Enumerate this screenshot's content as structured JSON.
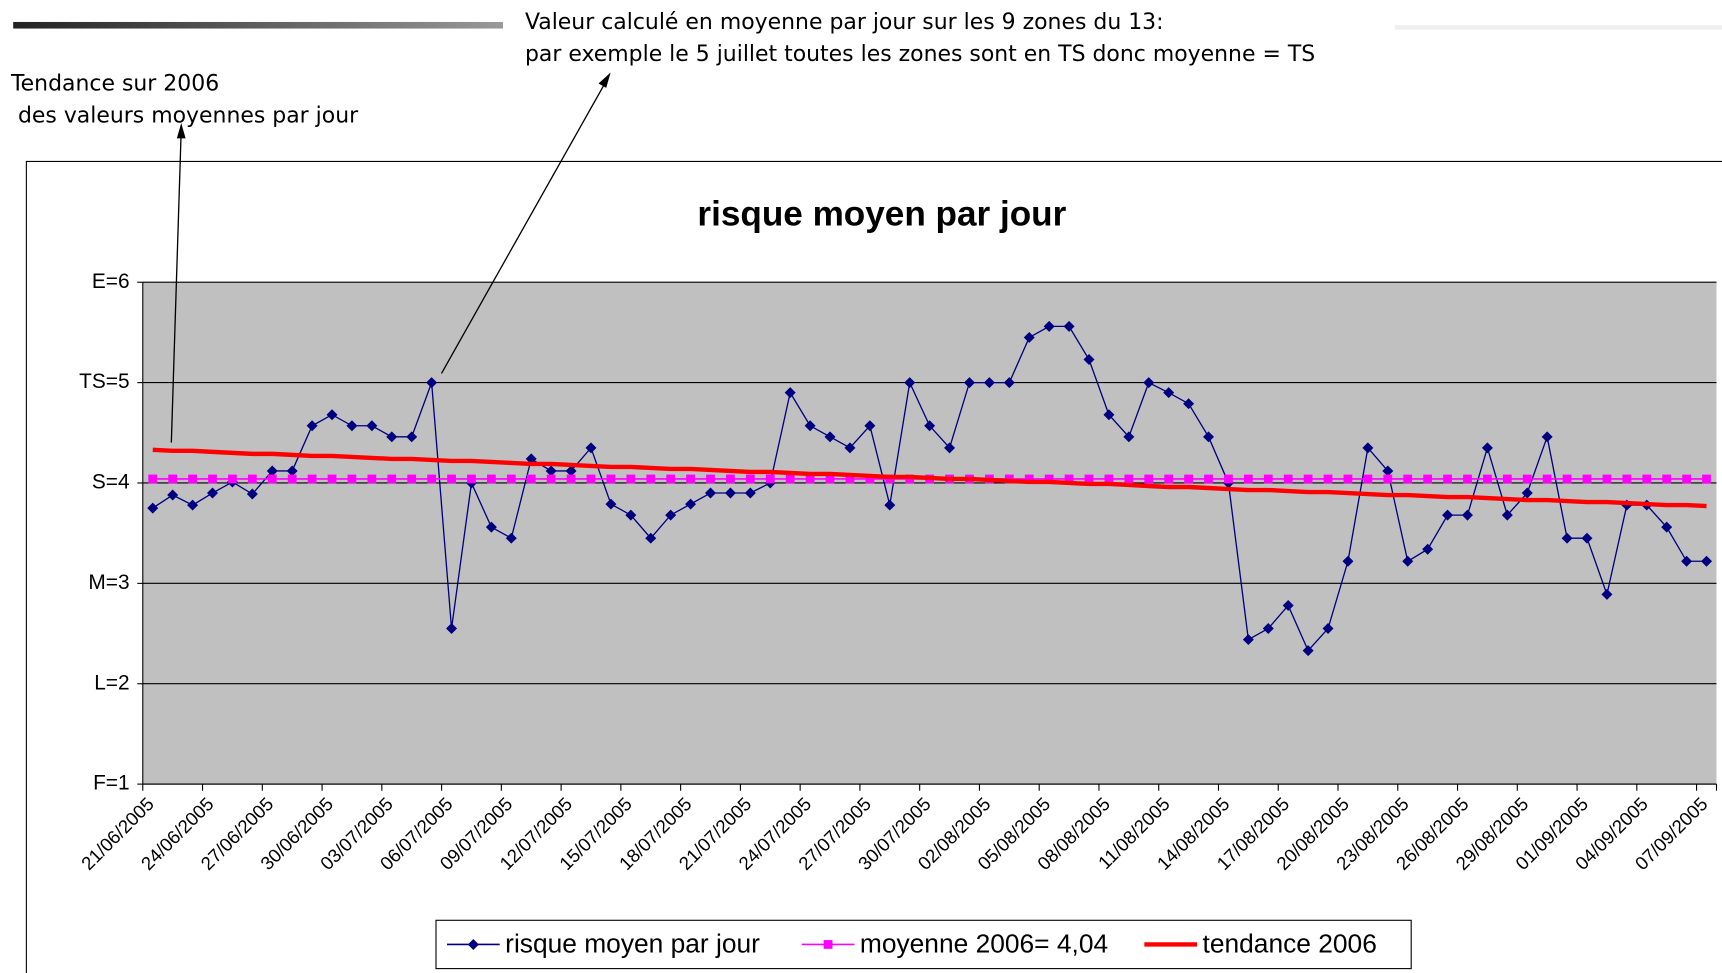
{
  "chart_data": {
    "type": "line",
    "title": "risque moyen par jour",
    "annotations": [
      [
        "Valeur calculé en moyenne par jour sur les 9 zones du 13:",
        "par exemple le 5 juillet toutes les zones sont en TS donc moyenne = TS"
      ],
      [
        "Tendance sur 2006",
        " des valeurs moyennes par jour"
      ]
    ],
    "categories": [
      "21/06/2005",
      null,
      null,
      "24/06/2005",
      null,
      null,
      "27/06/2005",
      null,
      null,
      "30/06/2005",
      null,
      null,
      "03/07/2005",
      null,
      null,
      "06/07/2005",
      null,
      null,
      "09/07/2005",
      null,
      null,
      "12/07/2005",
      null,
      null,
      "15/07/2005",
      null,
      null,
      "18/07/2005",
      null,
      null,
      "21/07/2005",
      null,
      null,
      "24/07/2005",
      null,
      null,
      "27/07/2005",
      null,
      null,
      "30/07/2005",
      null,
      null,
      "02/08/2005",
      null,
      null,
      "05/08/2005",
      null,
      null,
      "08/08/2005",
      null,
      null,
      "11/08/2005",
      null,
      null,
      "14/08/2005",
      null,
      null,
      "17/08/2005",
      null,
      null,
      "20/08/2005",
      null,
      null,
      "23/08/2005",
      null,
      null,
      "26/08/2005",
      null,
      null,
      "29/08/2005",
      null,
      null,
      "01/09/2005",
      null,
      null,
      "04/09/2005",
      null,
      null,
      "07/09/2005"
    ],
    "series": [
      {
        "name": "risque moyen par jour",
        "color": "#000080",
        "marker": "diamond",
        "values": [
          3.75,
          3.88,
          3.78,
          3.9,
          4.01,
          3.89,
          4.12,
          4.12,
          4.57,
          4.68,
          4.57,
          4.57,
          4.46,
          4.46,
          5.0,
          2.55,
          4.0,
          3.56,
          3.45,
          4.24,
          4.12,
          4.12,
          4.35,
          3.79,
          3.68,
          3.45,
          3.68,
          3.79,
          3.9,
          3.9,
          3.9,
          4.0,
          4.9,
          4.57,
          4.46,
          4.35,
          4.57,
          3.78,
          5.0,
          4.57,
          4.35,
          5.0,
          5.0,
          5.0,
          5.45,
          5.56,
          5.56,
          5.23,
          4.68,
          4.46,
          5.0,
          4.9,
          4.79,
          4.46,
          4.0,
          2.44,
          2.55,
          2.78,
          2.33,
          2.55,
          3.22,
          4.35,
          4.12,
          3.22,
          3.34,
          3.68,
          3.68,
          4.35,
          3.68,
          3.9,
          4.46,
          3.45,
          3.45,
          2.89,
          3.78,
          3.78,
          3.56,
          3.22,
          3.22
        ]
      },
      {
        "name": "moyenne 2006= 4,04",
        "color": "#ff00ff",
        "marker": "square",
        "values": [
          4.04,
          4.04,
          4.04,
          4.04,
          4.04,
          4.04,
          4.04,
          4.04,
          4.04,
          4.04,
          4.04,
          4.04,
          4.04,
          4.04,
          4.04,
          4.04,
          4.04,
          4.04,
          4.04,
          4.04,
          4.04,
          4.04,
          4.04,
          4.04,
          4.04,
          4.04,
          4.04,
          4.04,
          4.04,
          4.04,
          4.04,
          4.04,
          4.04,
          4.04,
          4.04,
          4.04,
          4.04,
          4.04,
          4.04,
          4.04,
          4.04,
          4.04,
          4.04,
          4.04,
          4.04,
          4.04,
          4.04,
          4.04,
          4.04,
          4.04,
          4.04,
          4.04,
          4.04,
          4.04,
          4.04,
          4.04,
          4.04,
          4.04,
          4.04,
          4.04,
          4.04,
          4.04,
          4.04,
          4.04,
          4.04,
          4.04,
          4.04,
          4.04,
          4.04,
          4.04,
          4.04,
          4.04,
          4.04,
          4.04,
          4.04,
          4.04,
          4.04,
          4.04,
          4.04
        ]
      },
      {
        "name": "tendance 2006",
        "color": "#ff0000",
        "marker": "none",
        "values": [
          4.33,
          4.32,
          4.32,
          4.31,
          4.3,
          4.29,
          4.29,
          4.28,
          4.27,
          4.27,
          4.26,
          4.25,
          4.24,
          4.24,
          4.23,
          4.22,
          4.22,
          4.21,
          4.2,
          4.19,
          4.19,
          4.18,
          4.17,
          4.16,
          4.16,
          4.15,
          4.14,
          4.14,
          4.13,
          4.12,
          4.11,
          4.11,
          4.1,
          4.09,
          4.09,
          4.08,
          4.07,
          4.06,
          4.06,
          4.05,
          4.04,
          4.04,
          4.03,
          4.02,
          4.01,
          4.01,
          4.0,
          3.99,
          3.99,
          3.98,
          3.97,
          3.96,
          3.96,
          3.95,
          3.94,
          3.93,
          3.93,
          3.92,
          3.91,
          3.91,
          3.9,
          3.89,
          3.88,
          3.88,
          3.87,
          3.86,
          3.86,
          3.85,
          3.84,
          3.83,
          3.83,
          3.82,
          3.81,
          3.81,
          3.8,
          3.79,
          3.78,
          3.78,
          3.77
        ]
      }
    ],
    "ylim": [
      1,
      6
    ],
    "yticks": [
      {
        "value": 1,
        "label": "F=1"
      },
      {
        "value": 2,
        "label": "L=2"
      },
      {
        "value": 3,
        "label": "M=3"
      },
      {
        "value": 4,
        "label": "S=4"
      },
      {
        "value": 5,
        "label": "TS=5"
      },
      {
        "value": 6,
        "label": "E=6"
      }
    ],
    "grid": true,
    "plot_background": "#c0c0c0",
    "legend": "bottom"
  }
}
